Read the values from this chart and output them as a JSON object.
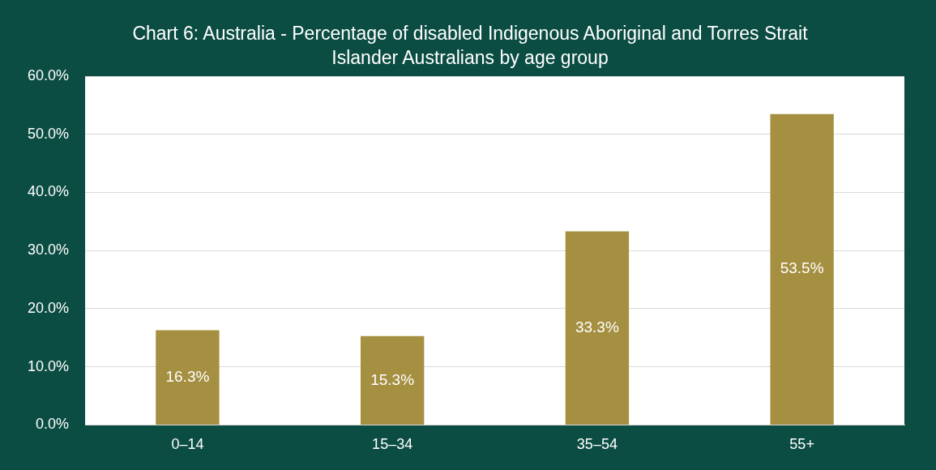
{
  "chart_data": {
    "type": "bar",
    "title": "Chart 6: Australia - Percentage of disabled Indigenous Aboriginal and Torres Strait Islander Australians by age group",
    "categories": [
      "0–14",
      "15–34",
      "35–54",
      "55+"
    ],
    "values": [
      16.3,
      15.3,
      33.3,
      53.5
    ],
    "color": "#a58f41",
    "value_labels": [
      "16.3%",
      "15.3%",
      "33.3%",
      "53.5%"
    ],
    "ylim": [
      0,
      60
    ],
    "yticks": [
      {
        "value": 0,
        "label": "0.0%"
      },
      {
        "value": 10,
        "label": "10.0%"
      },
      {
        "value": 20,
        "label": "20.0%"
      },
      {
        "value": 30,
        "label": "30.0%"
      },
      {
        "value": 40,
        "label": "40.0%"
      },
      {
        "value": 50,
        "label": "50.0%"
      },
      {
        "value": 60,
        "label": "60.0%"
      }
    ],
    "grid": "y",
    "legend": false
  }
}
